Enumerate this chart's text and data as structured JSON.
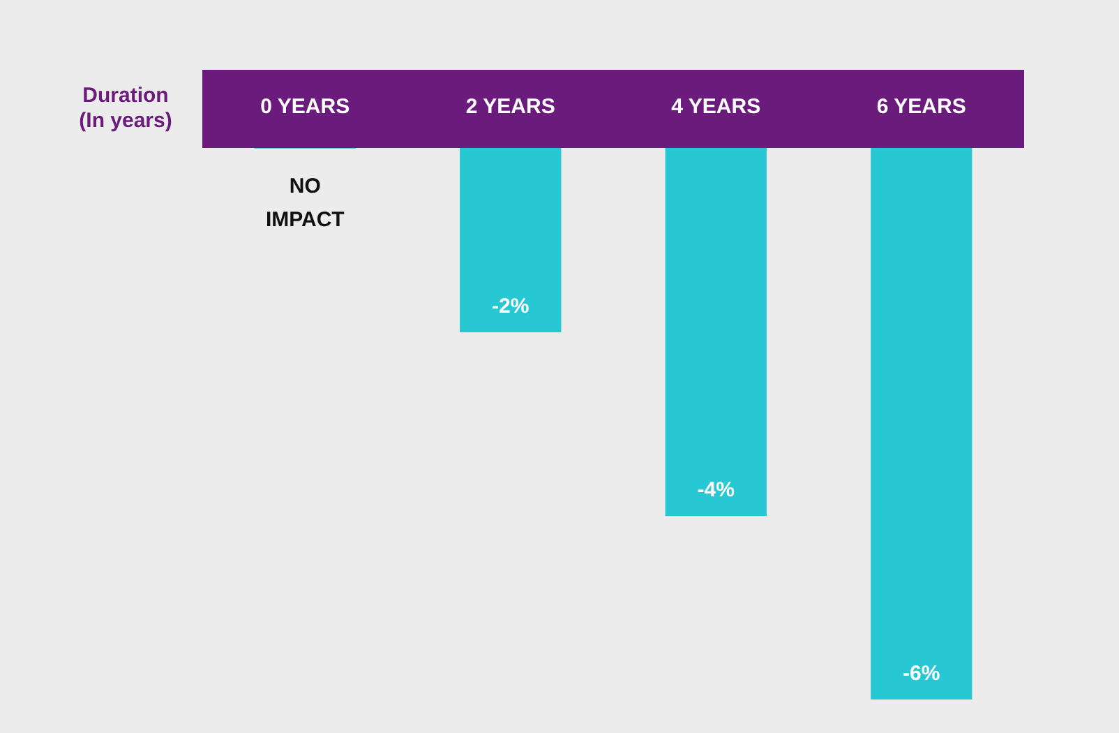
{
  "chart_data": {
    "type": "bar",
    "xlabel": "Duration (In years)",
    "categories": [
      "0 YEARS",
      "2 YEARS",
      "4 YEARS",
      "6 YEARS"
    ],
    "values": [
      0,
      -2,
      -4,
      -6
    ],
    "color": "#27c8d3",
    "value_labels": [
      "NO IMPACT",
      "-2%",
      "-4%",
      "-6%"
    ],
    "ylim": [
      -6,
      0
    ],
    "grid": false,
    "legend": false
  }
}
